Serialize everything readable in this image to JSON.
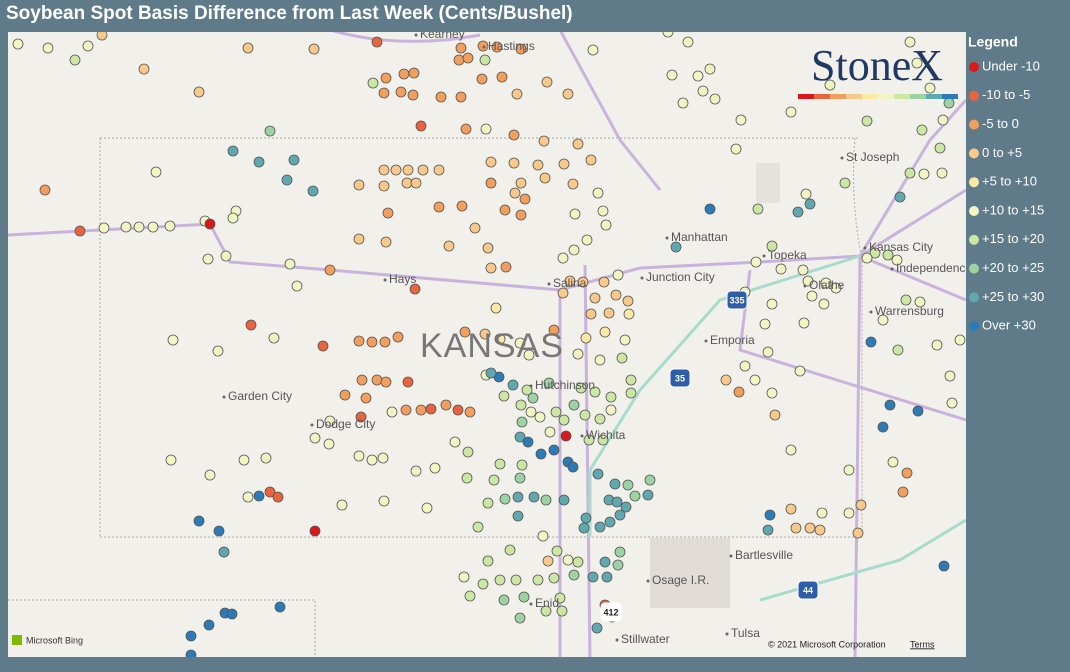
{
  "title": "Soybean Spot Basis Difference from Last Week (Cents/Bushel)",
  "legend": {
    "title": "Legend",
    "items": [
      {
        "label": "Under -10",
        "color": "#d7191c"
      },
      {
        "label": "-10 to -5",
        "color": "#e8643c"
      },
      {
        "label": "-5 to 0",
        "color": "#f29e5c"
      },
      {
        "label": "0 to +5",
        "color": "#f8c98a"
      },
      {
        "label": "+5 to +10",
        "color": "#fbeaa6"
      },
      {
        "label": "+10 to +15",
        "color": "#f1f5c4"
      },
      {
        "label": "+15 to +20",
        "color": "#cbe7a3"
      },
      {
        "label": "+20 to +25",
        "color": "#9dd3a2"
      },
      {
        "label": "+25 to +30",
        "color": "#5fa8b0"
      },
      {
        "label": "Over +30",
        "color": "#2c7bb6"
      }
    ]
  },
  "logo": "StoneX",
  "state_label": "KANSAS",
  "places": [
    "Kearney",
    "Hastings",
    "St Joseph",
    "Manhattan",
    "Topeka",
    "Kansas City",
    "Independence",
    "Junction City",
    "Olathe",
    "Hays",
    "Salina",
    "Emporia",
    "Warrensburg",
    "Hutchinson",
    "Wichita",
    "Garden City",
    "Dodge City",
    "Bartlesville",
    "Osage I.R.",
    "Enid",
    "Tulsa",
    "Stillwater"
  ],
  "shields": [
    "335",
    "35",
    "44",
    "412"
  ],
  "attribution": {
    "bing": "Microsoft Bing",
    "copyright": "© 2021 Microsoft Corporation",
    "terms": "Terms"
  }
}
